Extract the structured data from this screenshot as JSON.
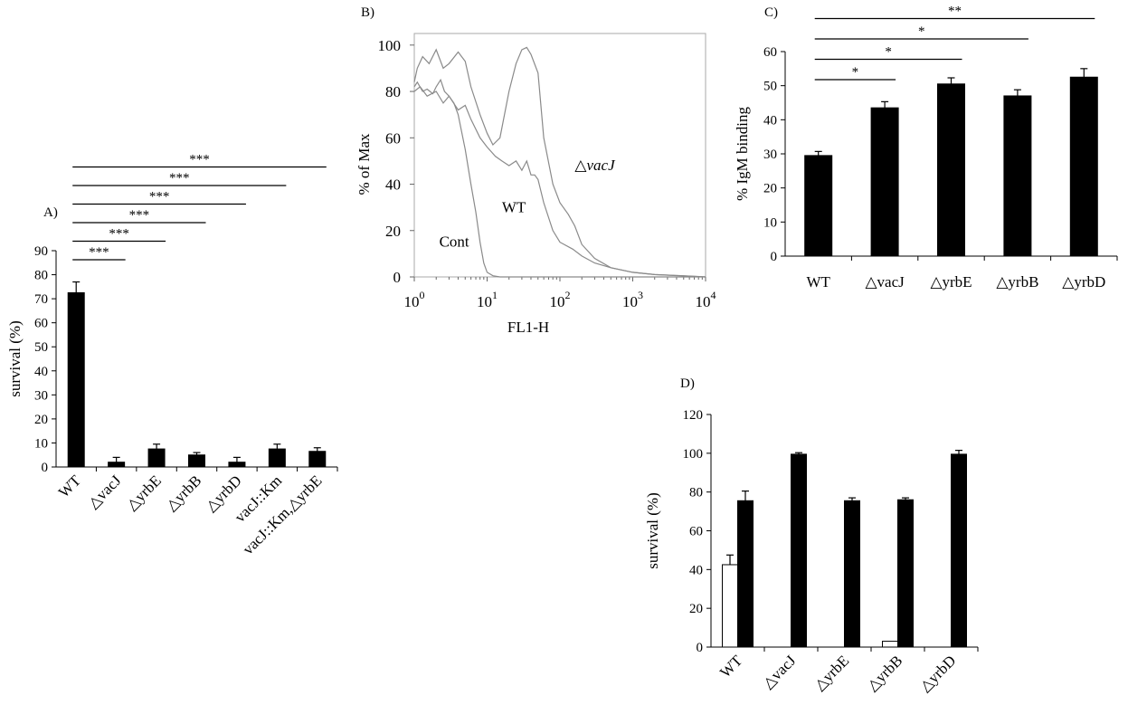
{
  "colors": {
    "bar_filled": "#000000",
    "bar_open": "#ffffff",
    "axis": "#000000",
    "flow_curve": "#8a8a8a"
  },
  "chart_data": [
    {
      "panel": "A)",
      "type": "bar",
      "ylabel": "survival (%)",
      "ylim": [
        0,
        90
      ],
      "yticks": [
        "0",
        "10",
        "20",
        "30",
        "40",
        "50",
        "60",
        "70",
        "80",
        "90"
      ],
      "categories": [
        "WT",
        "△vacJ",
        "△yrbE",
        "△yrbB",
        "△yrbD",
        "vacJ::Km",
        "vacJ::Km,△yrbE"
      ],
      "series": [
        {
          "values": [
            72.5,
            2,
            7.5,
            5,
            2,
            7.5,
            6.5
          ],
          "errors": [
            4.5,
            2,
            2,
            1,
            2,
            2,
            1.5
          ]
        }
      ],
      "significance": [
        {
          "label": "***",
          "from": 0,
          "to": 1
        },
        {
          "label": "***",
          "from": 0,
          "to": 2
        },
        {
          "label": "***",
          "from": 0,
          "to": 3
        },
        {
          "label": "***",
          "from": 0,
          "to": 4
        },
        {
          "label": "***",
          "from": 0,
          "to": 5
        },
        {
          "label": "***",
          "from": 0,
          "to": 6
        }
      ]
    },
    {
      "panel": "B)",
      "type": "line",
      "xlabel": "FL1-H",
      "ylabel": "% of Max",
      "xscale": "log",
      "xlim": [
        1,
        10000
      ],
      "ylim": [
        0,
        105
      ],
      "xtick_bases": [
        "10",
        "10",
        "10",
        "10",
        "10"
      ],
      "xtick_exps": [
        "0",
        "1",
        "2",
        "3",
        "4"
      ],
      "yticks": [
        "0",
        "20",
        "40",
        "60",
        "80",
        "100"
      ],
      "annotations": [
        {
          "text": "Cont",
          "x": 2.2,
          "y": 13
        },
        {
          "text": "WT",
          "x": 16,
          "y": 28
        },
        {
          "text": "△vacJ",
          "x": 160,
          "y": 46
        }
      ],
      "series": [
        {
          "name": "Cont",
          "x": [
            1,
            1.1,
            1.3,
            1.5,
            1.8,
            2,
            2.3,
            2.6,
            3,
            3.5,
            4,
            5,
            6,
            7,
            8,
            9,
            10,
            12,
            15,
            20,
            100,
            10000
          ],
          "y": [
            82,
            84,
            80,
            81,
            79,
            82,
            85,
            80,
            78,
            75,
            70,
            55,
            40,
            28,
            15,
            6,
            2,
            0.5,
            0,
            0,
            0,
            0
          ]
        },
        {
          "name": "WT",
          "x": [
            1,
            1.2,
            1.5,
            2,
            2.5,
            3,
            4,
            5,
            6,
            8,
            10,
            13,
            16,
            20,
            25,
            30,
            35,
            40,
            45,
            50,
            60,
            80,
            100,
            150,
            200,
            300,
            500,
            1000,
            2000,
            10000
          ],
          "y": [
            80,
            82,
            78,
            80,
            75,
            78,
            72,
            74,
            68,
            60,
            56,
            52,
            50,
            48,
            50,
            46,
            50,
            44,
            44,
            42,
            32,
            20,
            15,
            12,
            9,
            6,
            4,
            2,
            1,
            0
          ]
        },
        {
          "name": "△vacJ",
          "x": [
            1,
            1.1,
            1.3,
            1.6,
            2,
            2.5,
            3,
            4,
            5,
            6,
            8,
            10,
            12,
            15,
            20,
            25,
            30,
            35,
            40,
            50,
            60,
            80,
            100,
            130,
            160,
            200,
            300,
            500,
            1000,
            2000,
            5000,
            10000
          ],
          "y": [
            84,
            90,
            95,
            92,
            98,
            90,
            92,
            97,
            93,
            82,
            70,
            62,
            57,
            60,
            80,
            92,
            98,
            99,
            96,
            88,
            60,
            40,
            32,
            27,
            22,
            14,
            8,
            4,
            2,
            1,
            0.5,
            0
          ]
        }
      ]
    },
    {
      "panel": "C)",
      "type": "bar",
      "ylabel": "% IgM binding",
      "ylim": [
        0,
        60
      ],
      "yticks": [
        "0",
        "10",
        "20",
        "30",
        "40",
        "50",
        "60"
      ],
      "categories": [
        "WT",
        "△vacJ",
        "△yrbE",
        "△yrbB",
        "△yrbD"
      ],
      "series": [
        {
          "values": [
            29.5,
            43.5,
            50.5,
            47,
            52.5
          ],
          "errors": [
            1.2,
            1.8,
            1.8,
            1.8,
            2.5
          ]
        }
      ],
      "significance": [
        {
          "label": "*",
          "from": 0,
          "to": 1
        },
        {
          "label": "*",
          "from": 0,
          "to": 2
        },
        {
          "label": "*",
          "from": 0,
          "to": 3
        },
        {
          "label": "**",
          "from": 0,
          "to": 4
        }
      ]
    },
    {
      "panel": "D)",
      "type": "bar",
      "ylabel": "survival (%)",
      "ylim": [
        0,
        120
      ],
      "yticks": [
        "0",
        "20",
        "40",
        "60",
        "80",
        "100",
        "120"
      ],
      "categories": [
        "WT",
        "△vacJ",
        "△yrbE",
        "△yrbB",
        "△yrbD"
      ],
      "series": [
        {
          "fill": "open",
          "values": [
            42.5,
            0,
            0,
            3,
            0
          ],
          "errors": [
            5,
            0,
            0,
            0,
            0
          ]
        },
        {
          "fill": "filled",
          "values": [
            75.5,
            99.5,
            75.5,
            76,
            99.5
          ],
          "errors": [
            5,
            0.8,
            1.5,
            1,
            2
          ]
        }
      ]
    }
  ]
}
